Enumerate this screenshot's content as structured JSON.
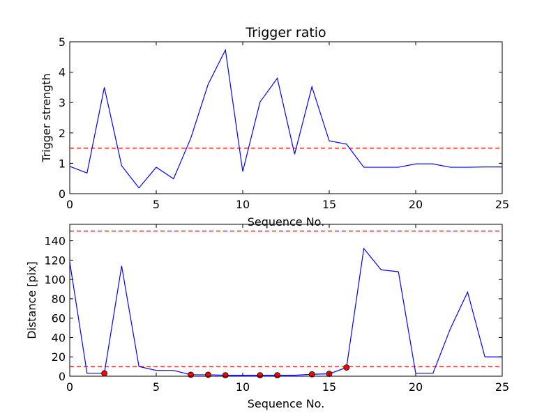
{
  "chart_data": [
    {
      "type": "line",
      "title": "Trigger ratio",
      "xlabel": "Sequence No.",
      "ylabel": "Trigger strength",
      "xlim": [
        0,
        25
      ],
      "ylim": [
        0,
        5
      ],
      "xticks": [
        "0",
        "5",
        "10",
        "15",
        "20",
        "25"
      ],
      "yticks": [
        "0",
        "1",
        "2",
        "3",
        "4",
        "5"
      ],
      "grid": false,
      "series": [
        {
          "color": "#0000ff",
          "style": "solid",
          "x": [
            0,
            1,
            2,
            3,
            4,
            5,
            6,
            7,
            8,
            9,
            10,
            11,
            12,
            13,
            14,
            15,
            16,
            17,
            18,
            19,
            20,
            21,
            22,
            23,
            24,
            25
          ],
          "y": [
            0.9,
            0.68,
            3.5,
            0.92,
            0.19,
            0.87,
            0.49,
            1.83,
            3.6,
            4.73,
            0.73,
            3.02,
            3.8,
            1.3,
            3.52,
            1.74,
            1.63,
            0.87,
            0.87,
            0.87,
            0.98,
            0.98,
            0.87,
            0.87,
            0.88,
            0.88
          ]
        }
      ],
      "threshold_lines": [
        {
          "y": 1.5,
          "color": "#ff0000",
          "style": "dashed"
        }
      ]
    },
    {
      "type": "line",
      "title": "",
      "xlabel": "Sequence No.",
      "ylabel": "Distance [pix]",
      "xlim": [
        0,
        25
      ],
      "ylim": [
        0,
        157
      ],
      "xticks": [
        "0",
        "5",
        "10",
        "15",
        "20",
        "25"
      ],
      "yticks": [
        "0",
        "20",
        "40",
        "60",
        "80",
        "100",
        "120",
        "140"
      ],
      "grid": false,
      "series": [
        {
          "color": "#0000ff",
          "style": "solid",
          "x": [
            0,
            1,
            2,
            3,
            4,
            5,
            6,
            7,
            8,
            9,
            10,
            11,
            12,
            13,
            14,
            15,
            16,
            17,
            18,
            19,
            20,
            21,
            22,
            23,
            24,
            25
          ],
          "y": [
            118,
            3,
            3,
            114,
            10,
            6,
            6,
            1.5,
            1.5,
            1,
            1,
            1,
            1,
            1,
            2,
            2.5,
            9,
            132,
            110,
            108,
            3,
            3,
            49,
            87,
            20,
            20
          ]
        }
      ],
      "markers": {
        "color": "#ff0000",
        "x": [
          2,
          7,
          8,
          9,
          11,
          12,
          14,
          15,
          16
        ],
        "y": [
          3,
          1.5,
          1.5,
          1,
          1,
          1,
          2,
          2.5,
          9
        ]
      },
      "threshold_lines": [
        {
          "y": 150,
          "color": "#ff0000",
          "style": "dashed"
        },
        {
          "y": 10,
          "color": "#ff0000",
          "style": "dashed"
        }
      ]
    }
  ]
}
